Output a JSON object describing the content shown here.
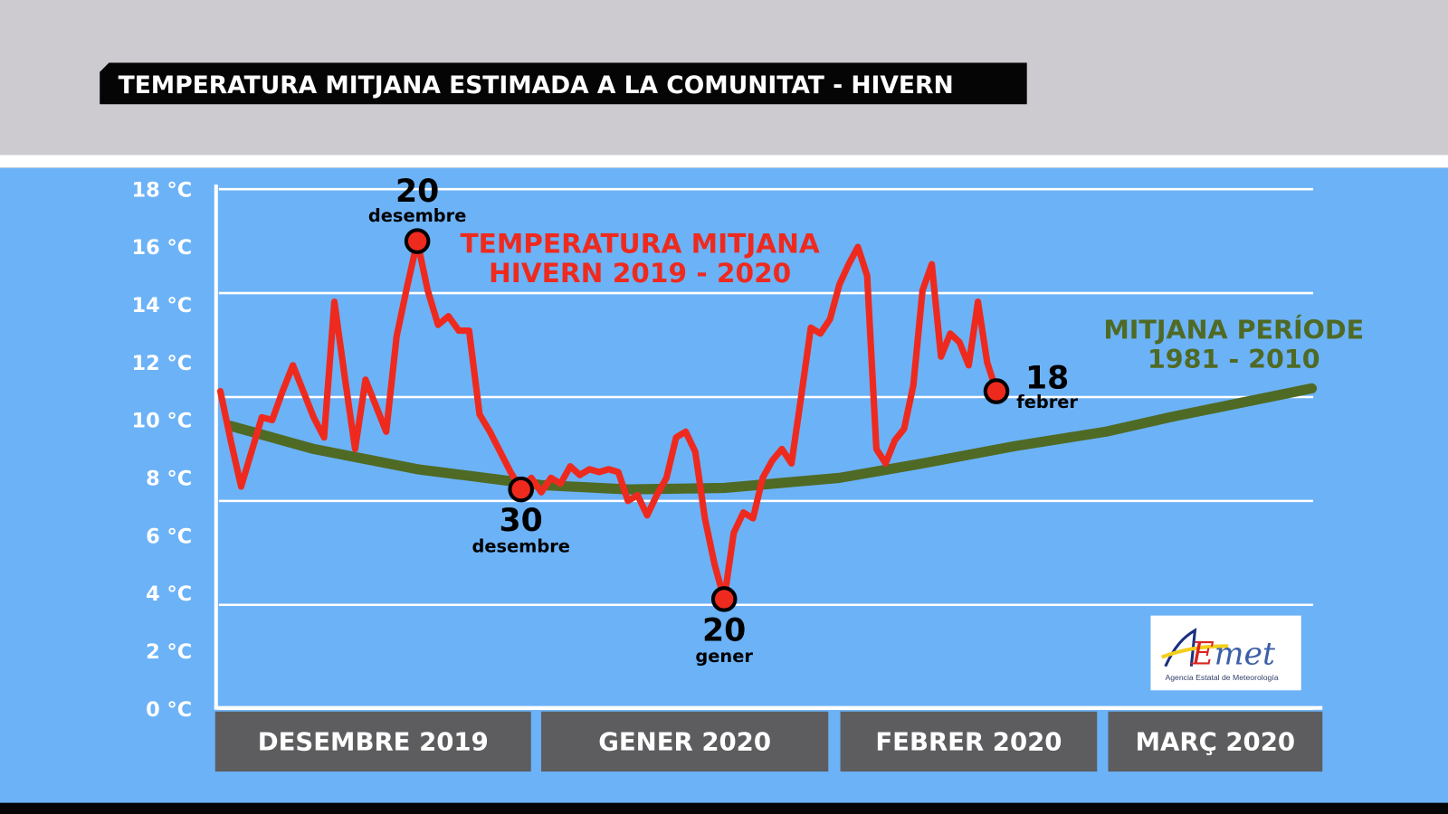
{
  "header": {
    "title": "TEMPERATURA MITJANA ESTIMADA A LA COMUNITAT - HIVERN"
  },
  "logo": {
    "text": "AEmet",
    "subtitle": "Agencia Estatal de Meteorología"
  },
  "chart_data": {
    "type": "line",
    "title": "TEMPERATURA MITJANA ESTIMADA A LA COMUNITAT - HIVERN",
    "ylim": [
      0,
      18
    ],
    "y_ticks": [
      "0 °C",
      "2 °C",
      "4 °C",
      "6 °C",
      "8 °C",
      "10 °C",
      "12 °C",
      "14 °C",
      "16 °C",
      "18 °C"
    ],
    "y_tick_values": [
      0,
      2,
      4,
      6,
      8,
      10,
      12,
      14,
      16,
      18
    ],
    "grid": true,
    "months": [
      "DESEMBRE 2019",
      "GENER 2020",
      "FEBRER 2020",
      "MARÇ 2020"
    ],
    "colors": {
      "current": "#ee2a1f",
      "normal": "#4f6a24",
      "background": "#6cb2f7",
      "month_box": "#5d5d5f"
    },
    "series": [
      {
        "name_lines": [
          "TEMPERATURA MITJANA",
          "HIVERN 2019 - 2020"
        ],
        "color": "#ee2a1f",
        "points": [
          [
            "2019-12-01",
            11.0
          ],
          [
            "2019-12-02",
            9.3
          ],
          [
            "2019-12-03",
            7.7
          ],
          [
            "2019-12-04",
            8.9
          ],
          [
            "2019-12-05",
            10.1
          ],
          [
            "2019-12-06",
            10.0
          ],
          [
            "2019-12-07",
            11.0
          ],
          [
            "2019-12-08",
            11.9
          ],
          [
            "2019-12-09",
            11.0
          ],
          [
            "2019-12-10",
            10.1
          ],
          [
            "2019-12-11",
            9.4
          ],
          [
            "2019-12-12",
            14.1
          ],
          [
            "2019-12-13",
            11.5
          ],
          [
            "2019-12-14",
            9.0
          ],
          [
            "2019-12-15",
            11.4
          ],
          [
            "2019-12-16",
            10.5
          ],
          [
            "2019-12-17",
            9.6
          ],
          [
            "2019-12-18",
            12.9
          ],
          [
            "2019-12-19",
            14.6
          ],
          [
            "2019-12-20",
            16.2
          ],
          [
            "2019-12-21",
            14.5
          ],
          [
            "2019-12-22",
            13.3
          ],
          [
            "2019-12-23",
            13.6
          ],
          [
            "2019-12-24",
            13.1
          ],
          [
            "2019-12-25",
            13.1
          ],
          [
            "2019-12-26",
            10.2
          ],
          [
            "2019-12-27",
            9.6
          ],
          [
            "2019-12-28",
            8.9
          ],
          [
            "2019-12-29",
            8.2
          ],
          [
            "2019-12-30",
            7.6
          ],
          [
            "2019-12-31",
            8.0
          ],
          [
            "2020-01-01",
            7.5
          ],
          [
            "2020-01-02",
            8.0
          ],
          [
            "2020-01-03",
            7.8
          ],
          [
            "2020-01-04",
            8.4
          ],
          [
            "2020-01-05",
            8.1
          ],
          [
            "2020-01-06",
            8.3
          ],
          [
            "2020-01-07",
            8.2
          ],
          [
            "2020-01-08",
            8.3
          ],
          [
            "2020-01-09",
            8.2
          ],
          [
            "2020-01-10",
            7.2
          ],
          [
            "2020-01-11",
            7.4
          ],
          [
            "2020-01-12",
            6.7
          ],
          [
            "2020-01-13",
            7.4
          ],
          [
            "2020-01-14",
            8.0
          ],
          [
            "2020-01-15",
            9.4
          ],
          [
            "2020-01-16",
            9.6
          ],
          [
            "2020-01-17",
            8.9
          ],
          [
            "2020-01-18",
            6.6
          ],
          [
            "2020-01-19",
            5.0
          ],
          [
            "2020-01-20",
            3.8
          ],
          [
            "2020-01-21",
            6.1
          ],
          [
            "2020-01-22",
            6.8
          ],
          [
            "2020-01-23",
            6.6
          ],
          [
            "2020-01-24",
            8.0
          ],
          [
            "2020-01-25",
            8.6
          ],
          [
            "2020-01-26",
            9.0
          ],
          [
            "2020-01-27",
            8.5
          ],
          [
            "2020-01-28",
            10.8
          ],
          [
            "2020-01-29",
            13.2
          ],
          [
            "2020-01-30",
            13.0
          ],
          [
            "2020-01-31",
            13.5
          ],
          [
            "2020-02-01",
            14.7
          ],
          [
            "2020-02-02",
            15.4
          ],
          [
            "2020-02-03",
            16.0
          ],
          [
            "2020-02-04",
            15.0
          ],
          [
            "2020-02-05",
            9.0
          ],
          [
            "2020-02-06",
            8.5
          ],
          [
            "2020-02-07",
            9.3
          ],
          [
            "2020-02-08",
            9.7
          ],
          [
            "2020-02-09",
            11.2
          ],
          [
            "2020-02-10",
            14.5
          ],
          [
            "2020-02-11",
            15.4
          ],
          [
            "2020-02-12",
            12.2
          ],
          [
            "2020-02-13",
            13.0
          ],
          [
            "2020-02-14",
            12.7
          ],
          [
            "2020-02-15",
            11.9
          ],
          [
            "2020-02-16",
            14.1
          ],
          [
            "2020-02-17",
            12.0
          ],
          [
            "2020-02-18",
            11.0
          ]
        ],
        "highlights": [
          {
            "date": "2019-12-20",
            "day": "20",
            "month": "desembre",
            "label_pos": "above"
          },
          {
            "date": "2019-12-30",
            "day": "30",
            "month": "desembre",
            "label_pos": "below"
          },
          {
            "date": "2020-01-20",
            "day": "20",
            "month": "gener",
            "label_pos": "below"
          },
          {
            "date": "2020-02-18",
            "day": "18",
            "month": "febrer",
            "label_pos": "right"
          }
        ]
      },
      {
        "name_lines": [
          "MITJANA PERÍODE",
          "1981 - 2010"
        ],
        "color": "#4f6a24",
        "points": [
          [
            "2019-12-02",
            9.8
          ],
          [
            "2019-12-10",
            9.0
          ],
          [
            "2019-12-20",
            8.3
          ],
          [
            "2020-01-01",
            7.75
          ],
          [
            "2020-01-10",
            7.6
          ],
          [
            "2020-01-20",
            7.65
          ],
          [
            "2020-02-01",
            8.0
          ],
          [
            "2020-02-10",
            8.5
          ],
          [
            "2020-02-20",
            9.1
          ],
          [
            "2020-03-01",
            9.6
          ],
          [
            "2020-03-10",
            10.1
          ],
          [
            "2020-03-20",
            10.6
          ],
          [
            "2020-03-30",
            11.1
          ]
        ]
      }
    ]
  }
}
